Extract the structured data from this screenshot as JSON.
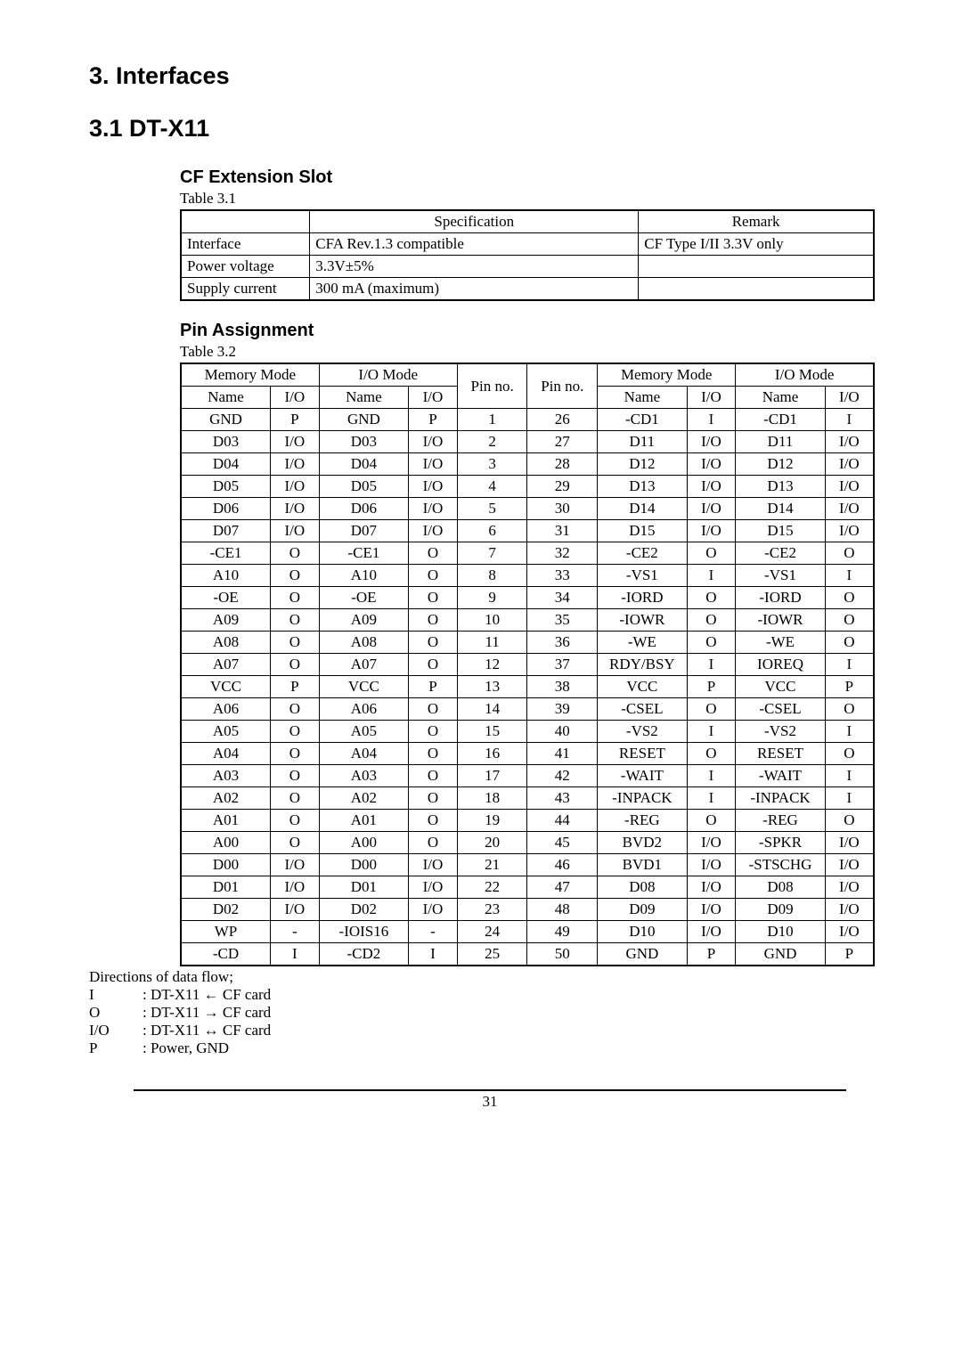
{
  "headings": {
    "h_interfaces": "3.   Interfaces",
    "h_dtx11": "3.1   DT-X11",
    "h_cf": "CF Extension Slot",
    "h_pin": "Pin Assignment"
  },
  "captions": {
    "t31": "Table 3.1",
    "t32": "Table 3.2"
  },
  "spec_table": {
    "head": [
      "",
      "Specification",
      "Remark"
    ],
    "rows": [
      [
        "Interface",
        "CFA Rev.1.3 compatible",
        "CF Type I/II 3.3V only"
      ],
      [
        "Power voltage",
        "3.3V±5%",
        ""
      ],
      [
        "Supply current",
        "300 mA (maximum)",
        ""
      ]
    ]
  },
  "pin_table": {
    "group_head": [
      "Memory Mode",
      "I/O Mode",
      "Pin no.",
      "Pin no.",
      "Memory Mode",
      "I/O Mode"
    ],
    "sub_head": [
      "Name",
      "I/O",
      "Name",
      "I/O",
      "Name",
      "I/O",
      "Name",
      "I/O"
    ],
    "rows": [
      [
        "GND",
        "P",
        "GND",
        "P",
        "1",
        "26",
        "-CD1",
        "I",
        "-CD1",
        "I"
      ],
      [
        "D03",
        "I/O",
        "D03",
        "I/O",
        "2",
        "27",
        "D11",
        "I/O",
        "D11",
        "I/O"
      ],
      [
        "D04",
        "I/O",
        "D04",
        "I/O",
        "3",
        "28",
        "D12",
        "I/O",
        "D12",
        "I/O"
      ],
      [
        "D05",
        "I/O",
        "D05",
        "I/O",
        "4",
        "29",
        "D13",
        "I/O",
        "D13",
        "I/O"
      ],
      [
        "D06",
        "I/O",
        "D06",
        "I/O",
        "5",
        "30",
        "D14",
        "I/O",
        "D14",
        "I/O"
      ],
      [
        "D07",
        "I/O",
        "D07",
        "I/O",
        "6",
        "31",
        "D15",
        "I/O",
        "D15",
        "I/O"
      ],
      [
        "-CE1",
        "O",
        "-CE1",
        "O",
        "7",
        "32",
        "-CE2",
        "O",
        "-CE2",
        "O"
      ],
      [
        "A10",
        "O",
        "A10",
        "O",
        "8",
        "33",
        "-VS1",
        "I",
        "-VS1",
        "I"
      ],
      [
        "-OE",
        "O",
        "-OE",
        "O",
        "9",
        "34",
        "-IORD",
        "O",
        "-IORD",
        "O"
      ],
      [
        "A09",
        "O",
        "A09",
        "O",
        "10",
        "35",
        "-IOWR",
        "O",
        "-IOWR",
        "O"
      ],
      [
        "A08",
        "O",
        "A08",
        "O",
        "11",
        "36",
        "-WE",
        "O",
        "-WE",
        "O"
      ],
      [
        "A07",
        "O",
        "A07",
        "O",
        "12",
        "37",
        "RDY/BSY",
        "I",
        "IOREQ",
        "I"
      ],
      [
        "VCC",
        "P",
        "VCC",
        "P",
        "13",
        "38",
        "VCC",
        "P",
        "VCC",
        "P"
      ],
      [
        "A06",
        "O",
        "A06",
        "O",
        "14",
        "39",
        "-CSEL",
        "O",
        "-CSEL",
        "O"
      ],
      [
        "A05",
        "O",
        "A05",
        "O",
        "15",
        "40",
        "-VS2",
        "I",
        "-VS2",
        "I"
      ],
      [
        "A04",
        "O",
        "A04",
        "O",
        "16",
        "41",
        "RESET",
        "O",
        "RESET",
        "O"
      ],
      [
        "A03",
        "O",
        "A03",
        "O",
        "17",
        "42",
        "-WAIT",
        "I",
        "-WAIT",
        "I"
      ],
      [
        "A02",
        "O",
        "A02",
        "O",
        "18",
        "43",
        "-INPACK",
        "I",
        "-INPACK",
        "I"
      ],
      [
        "A01",
        "O",
        "A01",
        "O",
        "19",
        "44",
        "-REG",
        "O",
        "-REG",
        "O"
      ],
      [
        "A00",
        "O",
        "A00",
        "O",
        "20",
        "45",
        "BVD2",
        "I/O",
        "-SPKR",
        "I/O"
      ],
      [
        "D00",
        "I/O",
        "D00",
        "I/O",
        "21",
        "46",
        "BVD1",
        "I/O",
        "-STSCHG",
        "I/O"
      ],
      [
        "D01",
        "I/O",
        "D01",
        "I/O",
        "22",
        "47",
        "D08",
        "I/O",
        "D08",
        "I/O"
      ],
      [
        "D02",
        "I/O",
        "D02",
        "I/O",
        "23",
        "48",
        "D09",
        "I/O",
        "D09",
        "I/O"
      ],
      [
        "WP",
        "-",
        "-IOIS16",
        "-",
        "24",
        "49",
        "D10",
        "I/O",
        "D10",
        "I/O"
      ],
      [
        "-CD",
        "I",
        "-CD2",
        "I",
        "25",
        "50",
        "GND",
        "P",
        "GND",
        "P"
      ]
    ]
  },
  "flow": {
    "title": "Directions of data flow;",
    "rows": [
      [
        "I",
        ": DT-X11  ←  CF card"
      ],
      [
        "O",
        ": DT-X11  →  CF card"
      ],
      [
        "I/O",
        ": DT-X11  ↔  CF card"
      ],
      [
        "P",
        ": Power, GND"
      ]
    ]
  },
  "page_number": "31"
}
